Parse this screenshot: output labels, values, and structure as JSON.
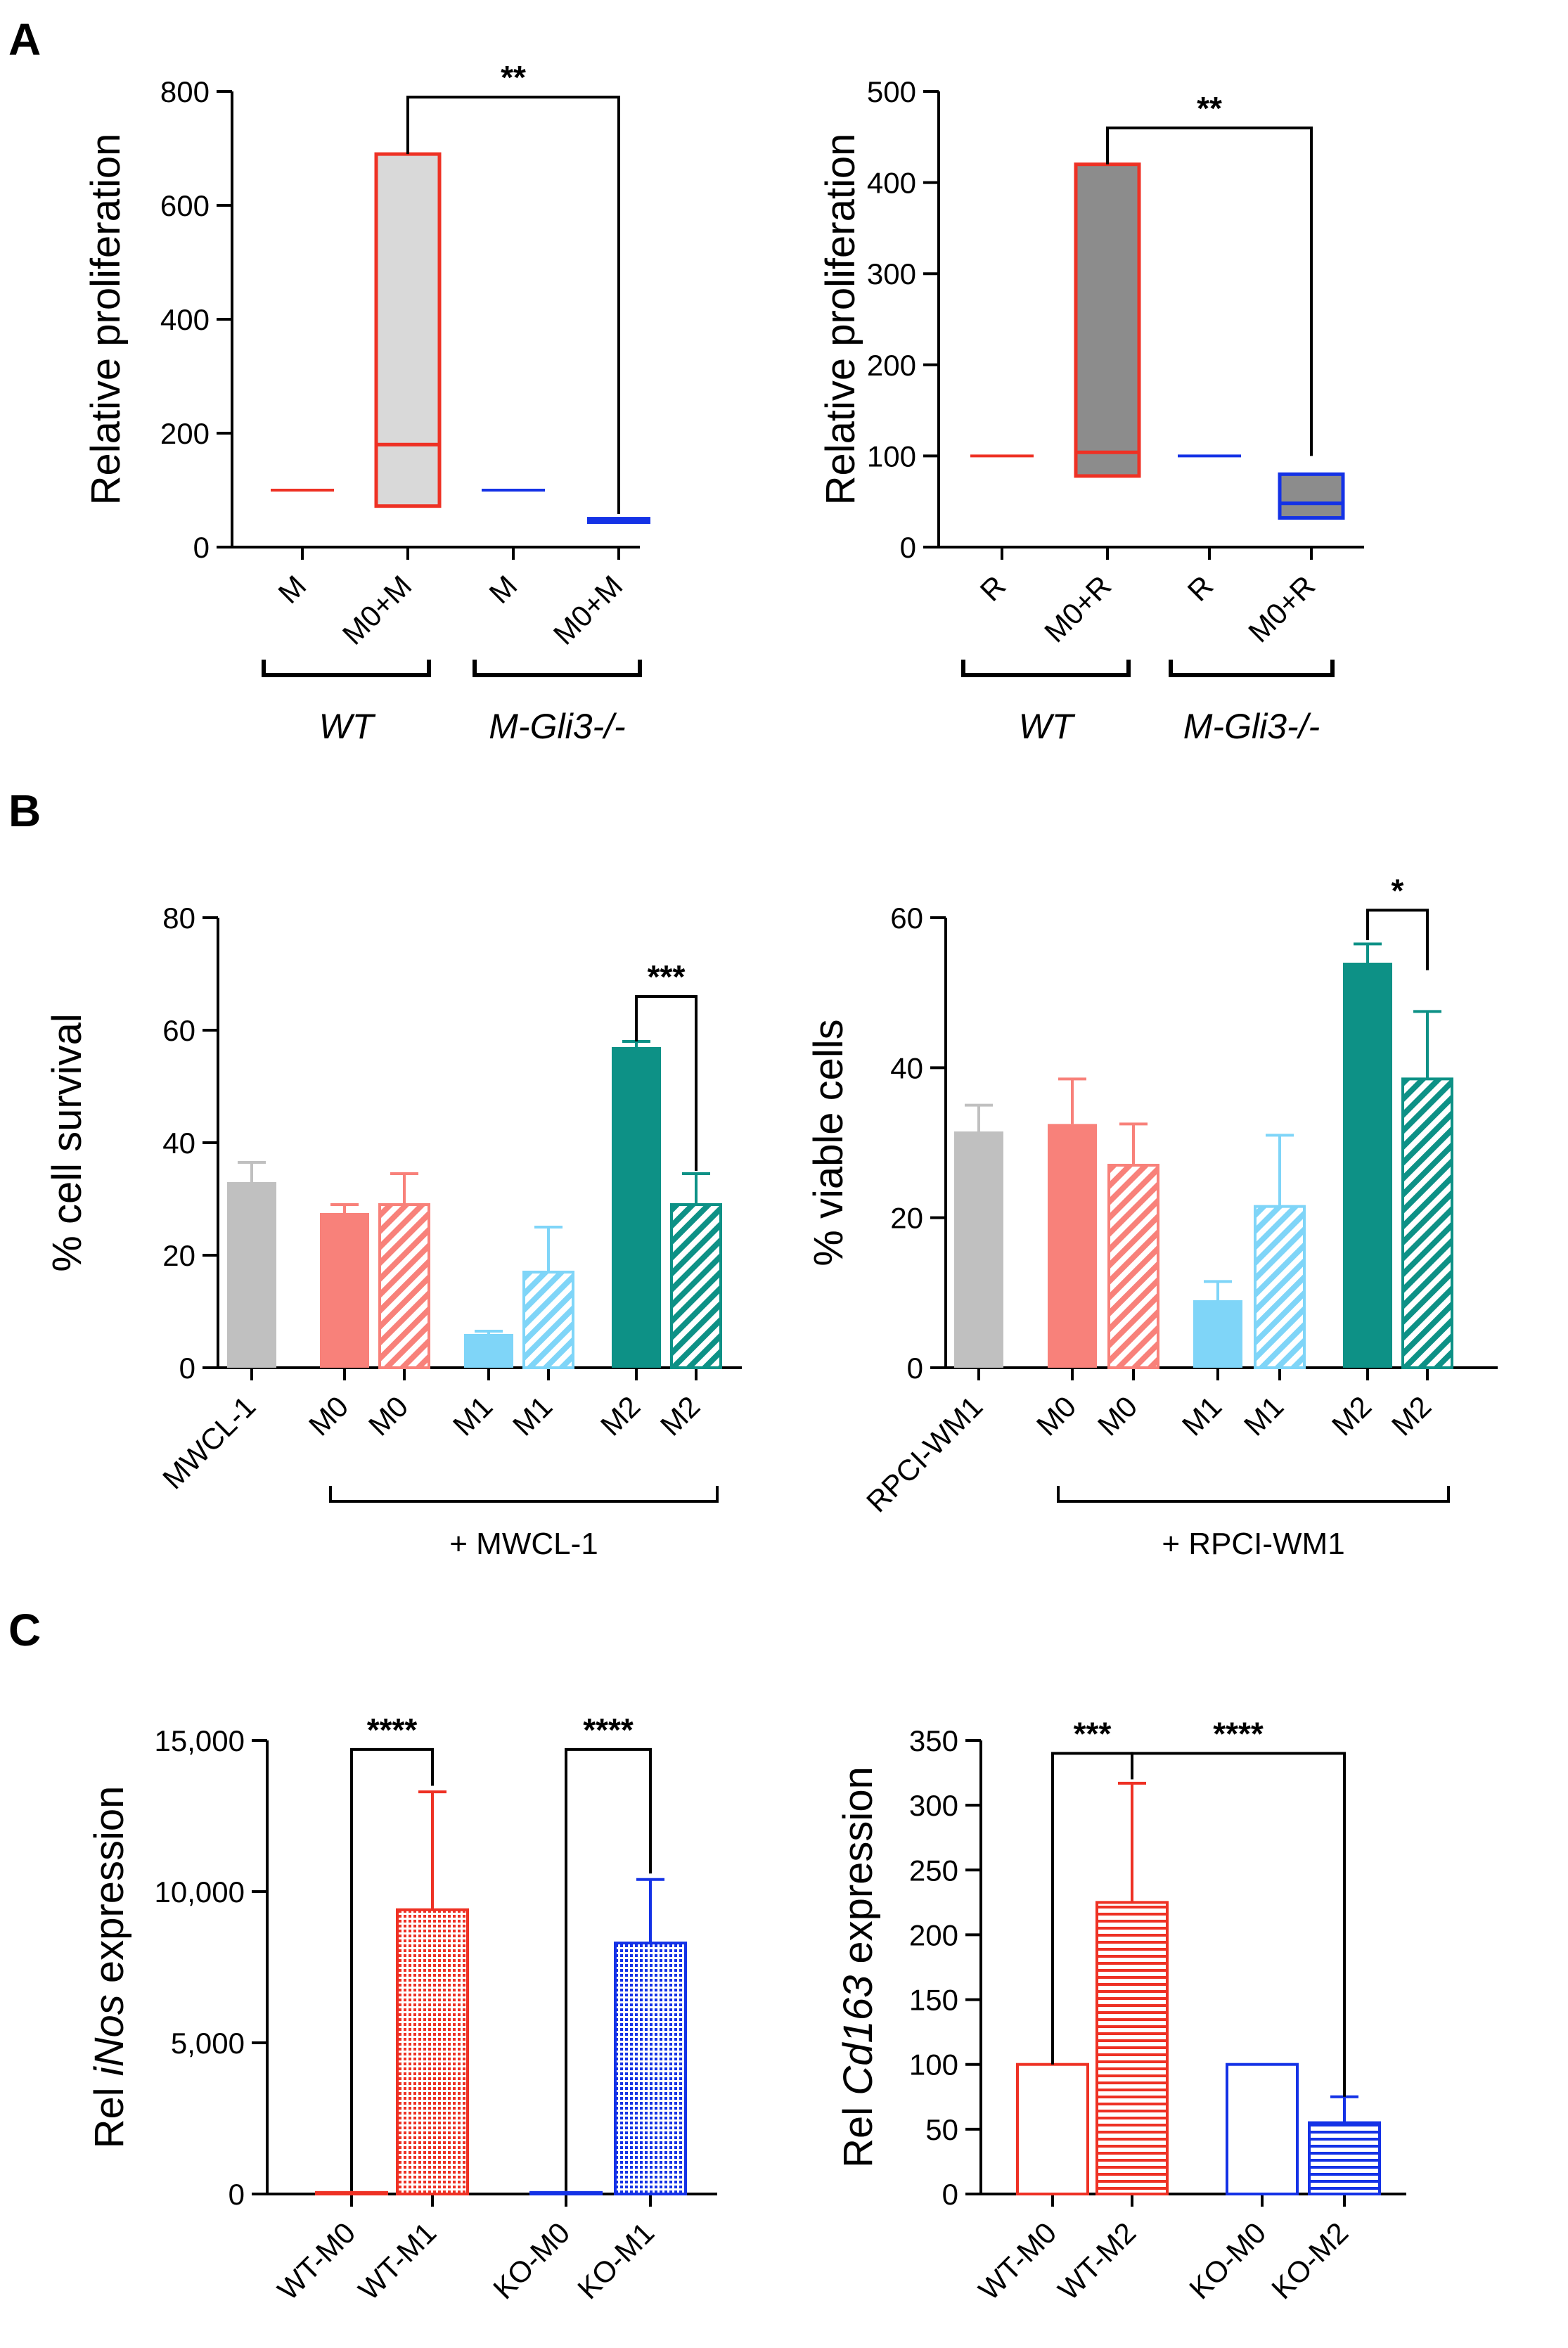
{
  "panels": [
    {
      "label": "A",
      "charts": [
        {
          "type": "box",
          "ylabel": "Relative proliferation",
          "ylabel_parts": [
            {
              "t": "Relative proliferation",
              "i": false
            }
          ],
          "ylim": [
            0,
            800
          ],
          "yticks": [
            0,
            200,
            400,
            600,
            800
          ],
          "tick_labels": [
            "0",
            "200",
            "400",
            "600",
            "800"
          ],
          "categories": [
            "M",
            "M0+M",
            "M",
            "M0+M"
          ],
          "groups": [
            {
              "label": "WT",
              "span": [
                0,
                1
              ]
            },
            {
              "label": "M-Gli3-/-",
              "span": [
                2,
                3
              ]
            }
          ],
          "boxes": [
            {
              "min": 100,
              "median": 100,
              "max": 100,
              "color": "#ee3124",
              "fill": "none"
            },
            {
              "min": 72,
              "median": 180,
              "max": 690,
              "color": "#ee3124",
              "fill": "#d9d9d9"
            },
            {
              "min": 100,
              "median": 100,
              "max": 100,
              "color": "#1432e6",
              "fill": "none"
            },
            {
              "min": 47,
              "median": 50,
              "max": 53,
              "color": "#1432e6",
              "fill": "#1432e6"
            }
          ],
          "significance": [
            {
              "from": 1,
              "to": 3,
              "y": 790,
              "leftFoot": 690,
              "rightFoot": 58,
              "label": "**"
            }
          ]
        },
        {
          "type": "box",
          "ylabel": "Relative proliferation",
          "ylabel_parts": [
            {
              "t": "Relative proliferation",
              "i": false
            }
          ],
          "ylim": [
            0,
            500
          ],
          "yticks": [
            0,
            100,
            200,
            300,
            400,
            500
          ],
          "tick_labels": [
            "0",
            "100",
            "200",
            "300",
            "400",
            "500"
          ],
          "categories": [
            "R",
            "M0+R",
            "R",
            "M0+R"
          ],
          "groups": [
            {
              "label": "WT",
              "span": [
                0,
                1
              ]
            },
            {
              "label": "M-Gli3-/-",
              "span": [
                2,
                3
              ]
            }
          ],
          "boxes": [
            {
              "min": 100,
              "median": 100,
              "max": 100,
              "color": "#ee3124",
              "fill": "none"
            },
            {
              "min": 78,
              "median": 104,
              "max": 420,
              "color": "#ee3124",
              "fill": "#8c8c8c"
            },
            {
              "min": 100,
              "median": 100,
              "max": 100,
              "color": "#1432e6",
              "fill": "none"
            },
            {
              "min": 32,
              "median": 48,
              "max": 80,
              "color": "#1432e6",
              "fill": "#8c8c8c"
            }
          ],
          "significance": [
            {
              "from": 1,
              "to": 3,
              "y": 460,
              "leftFoot": 420,
              "rightFoot": 100,
              "label": "**"
            }
          ]
        }
      ]
    },
    {
      "label": "B",
      "charts": [
        {
          "type": "bar",
          "ylabel": "% cell survival",
          "ylabel_parts": [
            {
              "t": "% cell survival",
              "i": false
            }
          ],
          "ylim": [
            0,
            80
          ],
          "yticks": [
            0,
            20,
            40,
            60,
            80
          ],
          "tick_labels": [
            "0",
            "20",
            "40",
            "60",
            "80"
          ],
          "categories": [
            "MWCL-1",
            "M0",
            "M0",
            "M1",
            "M1",
            "M2",
            "M2"
          ],
          "values": [
            33,
            27.5,
            29,
            6,
            17,
            57,
            29
          ],
          "errors": [
            3.5,
            1.5,
            5.5,
            0.5,
            8,
            1,
            5.5
          ],
          "colors": [
            "#c0c0c0",
            "#f8817a",
            "#f8817a",
            "#7fd5f8",
            "#7fd5f8",
            "#0d9186",
            "#0d9186"
          ],
          "patterns": [
            "solid",
            "solid",
            "hatch",
            "solid",
            "hatch",
            "solid",
            "hatch"
          ],
          "bracket_label": "+ MWCL-1",
          "bracket_span": [
            1,
            6
          ],
          "significance": [
            {
              "from": 5,
              "to": 6,
              "y": 66,
              "leftFoot": 58,
              "rightFoot": 35,
              "label": "***"
            }
          ]
        },
        {
          "type": "bar",
          "ylabel": "% viable cells",
          "ylabel_parts": [
            {
              "t": "% viable cells",
              "i": false
            }
          ],
          "ylim": [
            0,
            60
          ],
          "yticks": [
            0,
            20,
            40,
            60
          ],
          "tick_labels": [
            "0",
            "20",
            "40",
            "60"
          ],
          "categories": [
            "RPCI-WM1",
            "M0",
            "M0",
            "M1",
            "M1",
            "M2",
            "M2"
          ],
          "values": [
            31.5,
            32.5,
            27,
            9,
            21.5,
            54,
            38.5
          ],
          "errors": [
            3.5,
            6,
            5.5,
            2.5,
            9.5,
            2.5,
            9
          ],
          "colors": [
            "#c0c0c0",
            "#f8817a",
            "#f8817a",
            "#7fd5f8",
            "#7fd5f8",
            "#0d9186",
            "#0d9186"
          ],
          "patterns": [
            "solid",
            "solid",
            "hatch",
            "solid",
            "hatch",
            "solid",
            "hatch"
          ],
          "bracket_label": "+ RPCI-WM1",
          "bracket_span": [
            1,
            6
          ],
          "significance": [
            {
              "from": 5,
              "to": 6,
              "y": 61,
              "leftFoot": 57,
              "rightFoot": 53,
              "label": "*"
            }
          ]
        }
      ]
    },
    {
      "label": "C",
      "charts": [
        {
          "type": "bar",
          "ylabel": "Rel iNos expression",
          "ylabel_parts": [
            {
              "t": "Rel ",
              "i": false
            },
            {
              "t": "iNos",
              "i": true
            },
            {
              "t": " expression",
              "i": false
            }
          ],
          "ylim": [
            0,
            15000
          ],
          "yticks": [
            0,
            5000,
            10000,
            15000
          ],
          "tick_labels": [
            "0",
            "5,000",
            "10,000",
            "15,000"
          ],
          "categories": [
            "WT-M0",
            "WT-M1",
            "KO-M0",
            "KO-M1"
          ],
          "values": [
            50,
            9400,
            50,
            8300
          ],
          "errors": [
            0,
            3900,
            0,
            2100
          ],
          "colors": [
            "#ee3124",
            "#ee3124",
            "#1432e6",
            "#1432e6"
          ],
          "patterns": [
            "outline",
            "dots",
            "outline",
            "dots"
          ],
          "significance": [
            {
              "from": 0,
              "to": 1,
              "y": 14700,
              "leftFoot": 100,
              "rightFoot": 13500,
              "label": "****"
            },
            {
              "from": 2,
              "to": 3,
              "y": 14700,
              "leftFoot": 100,
              "rightFoot": 10600,
              "label": "****"
            }
          ]
        },
        {
          "type": "bar",
          "ylabel": "Rel Cd163 expression",
          "ylabel_parts": [
            {
              "t": "Rel ",
              "i": false
            },
            {
              "t": "Cd163",
              "i": true
            },
            {
              "t": " expression",
              "i": false
            }
          ],
          "ylim": [
            0,
            350
          ],
          "yticks": [
            0,
            50,
            100,
            150,
            200,
            250,
            300,
            350
          ],
          "tick_labels": [
            "0",
            "50",
            "100",
            "150",
            "200",
            "250",
            "300",
            "350"
          ],
          "categories": [
            "WT-M0",
            "WT-M2",
            "KO-M0",
            "KO-M2"
          ],
          "values": [
            100,
            225,
            100,
            55
          ],
          "errors": [
            0,
            92,
            0,
            20
          ],
          "colors": [
            "#ee3124",
            "#ee3124",
            "#1432e6",
            "#1432e6"
          ],
          "patterns": [
            "outline",
            "hlines",
            "outline",
            "hlines"
          ],
          "significance": [
            {
              "from": 0,
              "to": 1,
              "y": 340,
              "leftFoot": 100,
              "rightFoot": 320,
              "label": "***"
            },
            {
              "from": 1,
              "to": 3,
              "y": 340,
              "leftFoot": 320,
              "rightFoot": 75,
              "label": "****"
            }
          ]
        }
      ]
    }
  ],
  "chart_data": [
    {
      "type": "box",
      "panel": "A",
      "ylabel": "Relative proliferation",
      "ylim": [
        0,
        800
      ],
      "categories": [
        "M",
        "M0+M",
        "M",
        "M0+M"
      ],
      "groups": [
        "WT",
        "M-Gli3-/-"
      ],
      "min": [
        100,
        72,
        100,
        47
      ],
      "median": [
        100,
        180,
        100,
        50
      ],
      "max": [
        100,
        690,
        100,
        53
      ],
      "significance": "**"
    },
    {
      "type": "box",
      "panel": "A",
      "ylabel": "Relative proliferation",
      "ylim": [
        0,
        500
      ],
      "categories": [
        "R",
        "M0+R",
        "R",
        "M0+R"
      ],
      "groups": [
        "WT",
        "M-Gli3-/-"
      ],
      "min": [
        100,
        78,
        100,
        32
      ],
      "median": [
        100,
        104,
        100,
        48
      ],
      "max": [
        100,
        420,
        100,
        80
      ],
      "significance": "**"
    },
    {
      "type": "bar",
      "panel": "B",
      "ylabel": "% cell survival",
      "ylim": [
        0,
        80
      ],
      "categories": [
        "MWCL-1",
        "M0",
        "M0",
        "M1",
        "M1",
        "M2",
        "M2"
      ],
      "values": [
        33,
        27.5,
        29,
        6,
        17,
        57,
        29
      ],
      "errors": [
        3.5,
        1.5,
        5.5,
        0.5,
        8,
        1,
        5.5
      ],
      "significance": "***"
    },
    {
      "type": "bar",
      "panel": "B",
      "ylabel": "% viable cells",
      "ylim": [
        0,
        60
      ],
      "categories": [
        "RPCI-WM1",
        "M0",
        "M0",
        "M1",
        "M1",
        "M2",
        "M2"
      ],
      "values": [
        31.5,
        32.5,
        27,
        9,
        21.5,
        54,
        38.5
      ],
      "errors": [
        3.5,
        6,
        5.5,
        2.5,
        9.5,
        2.5,
        9
      ],
      "significance": "*"
    },
    {
      "type": "bar",
      "panel": "C",
      "ylabel": "Rel iNos expression",
      "ylim": [
        0,
        15000
      ],
      "categories": [
        "WT-M0",
        "WT-M1",
        "KO-M0",
        "KO-M1"
      ],
      "values": [
        50,
        9400,
        50,
        8300
      ],
      "errors": [
        0,
        3900,
        0,
        2100
      ],
      "significance": [
        "****",
        "****"
      ]
    },
    {
      "type": "bar",
      "panel": "C",
      "ylabel": "Rel Cd163 expression",
      "ylim": [
        0,
        350
      ],
      "categories": [
        "WT-M0",
        "WT-M2",
        "KO-M0",
        "KO-M2"
      ],
      "values": [
        100,
        225,
        100,
        55
      ],
      "errors": [
        0,
        92,
        0,
        20
      ],
      "significance": [
        "***",
        "****"
      ]
    }
  ]
}
